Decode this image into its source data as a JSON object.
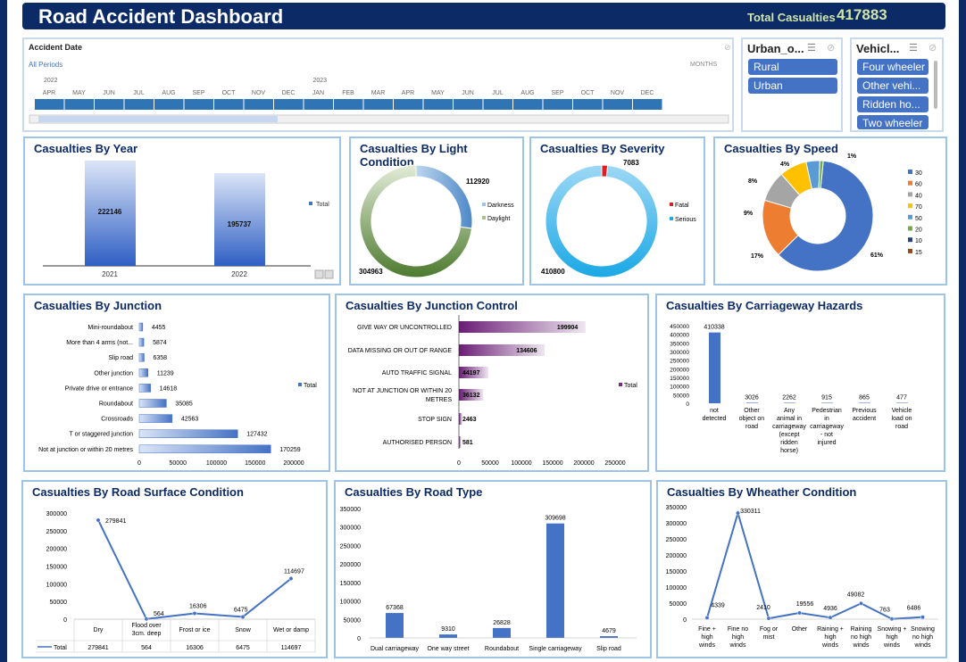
{
  "header": {
    "title": "Road Accident Dashboard",
    "total_label": "Total Casualties",
    "total_value": "417883"
  },
  "timeline": {
    "label": "Accident  Date",
    "period": "All Periods",
    "unit": "MONTHS",
    "years": [
      "2022",
      "2023"
    ],
    "months": [
      "APR",
      "MAY",
      "JUN",
      "JUL",
      "AUG",
      "SEP",
      "OCT",
      "NOV",
      "DEC",
      "JAN",
      "FEB",
      "MAR",
      "APR",
      "MAY",
      "JUN",
      "JUL",
      "AUG",
      "SEP",
      "OCT",
      "NOV",
      "DEC"
    ]
  },
  "slicers": {
    "urban": {
      "title": "Urban_o...",
      "items": [
        "Rural",
        "Urban"
      ]
    },
    "vehicle": {
      "title": "Vehicl...",
      "items": [
        "Four wheeler",
        "Other vehi...",
        "Ridden ho...",
        "Two wheeler"
      ]
    }
  },
  "colors": {
    "navy": "#0b2a66",
    "blue": "#4472c4",
    "purple": "#7b2a80",
    "orange": "#ed7d31"
  },
  "chart_data": [
    {
      "id": "year",
      "type": "bar",
      "title": "Casualties By Year",
      "categories": [
        "2021",
        "2022"
      ],
      "values": [
        222146,
        195737
      ],
      "legend": "Total"
    },
    {
      "id": "light",
      "type": "pie",
      "title": "Casualties By Light Condition",
      "categories": [
        "Darkness",
        "Daylight"
      ],
      "values": [
        112920,
        304963
      ]
    },
    {
      "id": "severity",
      "type": "pie",
      "title": "Casualties By Severity",
      "categories": [
        "Fatal",
        "Serious"
      ],
      "values": [
        7083,
        410800
      ]
    },
    {
      "id": "speed",
      "type": "pie",
      "title": "Casualties By Speed",
      "categories": [
        "30",
        "60",
        "40",
        "70",
        "50",
        "20",
        "10",
        "15"
      ],
      "values": [
        61,
        17,
        9,
        8,
        4,
        1,
        0.01,
        0.01
      ],
      "labels": [
        "61%",
        "17%",
        "9%",
        "8%",
        "4%",
        "1%"
      ]
    },
    {
      "id": "junction",
      "type": "bar",
      "title": "Casualties By Junction",
      "orientation": "horizontal",
      "categories": [
        "Mini-roundabout",
        "More than 4 arms (not...",
        "Slip road",
        "Other junction",
        "Private drive or entrance",
        "Roundabout",
        "Crossroads",
        "T or staggered junction",
        "Not at junction or within 20 metres"
      ],
      "values": [
        4455,
        5874,
        6358,
        11239,
        14618,
        35085,
        42563,
        127432,
        170259
      ],
      "xticks": [
        "0",
        "50000",
        "100000",
        "150000",
        "200000"
      ],
      "xlim": [
        0,
        200000
      ],
      "legend": "Total"
    },
    {
      "id": "jcontrol",
      "type": "bar",
      "title": "Casualties By Junction Control",
      "orientation": "horizontal",
      "categories": [
        "GIVE WAY OR UNCONTROLLED",
        "DATA MISSING OR OUT OF RANGE",
        "AUTO TRAFFIC SIGNAL",
        "NOT AT JUNCTION OR WITHIN 20 METRES",
        "STOP SIGN",
        "AUTHORISED PERSON"
      ],
      "values": [
        199904,
        134606,
        44197,
        36132,
        2463,
        581
      ],
      "xticks": [
        "0",
        "50000",
        "100000",
        "150000",
        "200000",
        "250000"
      ],
      "xlim": [
        0,
        250000
      ],
      "legend": "Total"
    },
    {
      "id": "hazards",
      "type": "bar",
      "title": "Casualties By Carriageway Hazards",
      "categories": [
        "not detected",
        "Other object on road",
        "Any animal in carriageway (except ridden horse)",
        "Pedestrian in carriageway - not injured",
        "Previous accident",
        "Vehicle load on road"
      ],
      "values": [
        410338,
        3026,
        2262,
        915,
        865,
        477
      ],
      "yticks": [
        "450000",
        "400000",
        "350000",
        "300000",
        "250000",
        "200000",
        "150000",
        "100000",
        "50000",
        "0"
      ],
      "ylim": [
        0,
        450000
      ]
    },
    {
      "id": "surface",
      "type": "line",
      "title": "Casualties By Road Surface Condition",
      "categories": [
        "Dry",
        "Flood over 3cm. deep",
        "Frost or ice",
        "Snow",
        "Wet or damp"
      ],
      "values": [
        279841,
        564,
        16306,
        6475,
        114697
      ],
      "table_values": [
        "279841",
        "564",
        "16306",
        "6475",
        "114697"
      ],
      "yticks": [
        "300000",
        "250000",
        "200000",
        "150000",
        "100000",
        "50000",
        "0"
      ],
      "ylim": [
        0,
        300000
      ],
      "legend": "Total"
    },
    {
      "id": "roadtype",
      "type": "bar",
      "title": "Casualties By Road Type",
      "categories": [
        "Dual carriageway",
        "One way street",
        "Roundabout",
        "Single carriageway",
        "Slip road"
      ],
      "values": [
        67368,
        9310,
        26828,
        309698,
        4679
      ],
      "yticks": [
        "350000",
        "300000",
        "250000",
        "200000",
        "150000",
        "100000",
        "50000",
        "0"
      ],
      "ylim": [
        0,
        350000
      ]
    },
    {
      "id": "weather",
      "type": "line",
      "title": "Casualties By Wheather Condition",
      "categories": [
        "Fine + high winds",
        "Fine no high winds",
        "Fog or mist",
        "Other",
        "Raining + high winds",
        "Raining no high winds",
        "Snowing + high winds",
        "Snowing no high winds"
      ],
      "values": [
        4339,
        330311,
        2410,
        19556,
        4936,
        49082,
        763,
        6486
      ],
      "yticks": [
        "350000",
        "300000",
        "250000",
        "200000",
        "150000",
        "100000",
        "50000",
        "0"
      ],
      "ylim": [
        0,
        350000
      ]
    }
  ]
}
